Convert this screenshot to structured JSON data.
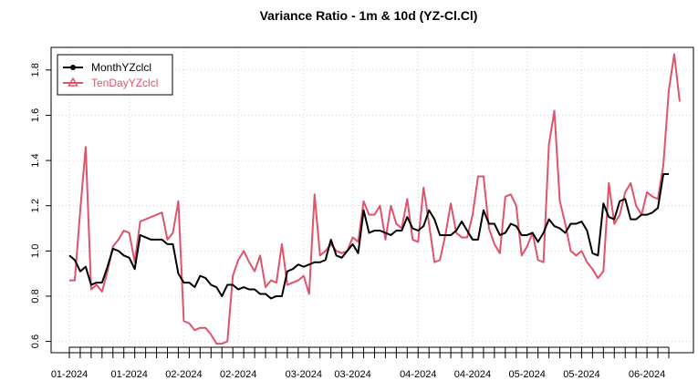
{
  "chart_data": {
    "type": "line",
    "title": "Variance Ratio - 1m & 10d (YZ-Cl.Cl)",
    "xlabel": "",
    "ylabel": "",
    "ylim": [
      0.55,
      1.9
    ],
    "yticks": [
      "0.6",
      "0.8",
      "1.0",
      "1.2",
      "1.4",
      "1.6",
      "1.8"
    ],
    "x_tick_labels": [
      "01-2024",
      "01-2024",
      "02-2024",
      "02-2024",
      "03-2024",
      "03-2024",
      "04-2024",
      "04-2024",
      "05-2024",
      "05-2024",
      "06-2024"
    ],
    "x_tick_label_index": [
      0,
      11,
      21,
      31,
      43,
      52,
      64,
      74,
      84,
      94,
      106
    ],
    "grid": true,
    "legend_position": "top-left",
    "series": [
      {
        "name": "MonthYZclcl",
        "color": "#000000",
        "marker": "circle",
        "values": [
          0.98,
          0.96,
          0.91,
          0.93,
          0.85,
          0.86,
          0.86,
          0.93,
          1.01,
          1.0,
          0.98,
          0.97,
          0.92,
          1.07,
          1.06,
          1.05,
          1.05,
          1.05,
          1.03,
          1.03,
          0.9,
          0.86,
          0.86,
          0.84,
          0.89,
          0.88,
          0.85,
          0.84,
          0.8,
          0.85,
          0.85,
          0.83,
          0.84,
          0.83,
          0.83,
          0.81,
          0.81,
          0.79,
          0.8,
          0.8,
          0.91,
          0.92,
          0.94,
          0.93,
          0.94,
          0.95,
          0.95,
          0.96,
          1.05,
          0.98,
          0.97,
          1.0,
          1.03,
          0.99,
          1.18,
          1.08,
          1.09,
          1.09,
          1.08,
          1.07,
          1.09,
          1.09,
          1.15,
          1.1,
          1.09,
          1.11,
          1.18,
          1.14,
          1.07,
          1.07,
          1.07,
          1.09,
          1.13,
          1.09,
          1.05,
          1.05,
          1.18,
          1.12,
          1.12,
          1.07,
          1.08,
          1.12,
          1.11,
          1.07,
          1.07,
          1.08,
          1.04,
          1.08,
          1.14,
          1.11,
          1.1,
          1.08,
          1.12,
          1.12,
          1.13,
          1.09,
          0.99,
          0.98,
          1.21,
          1.15,
          1.14,
          1.22,
          1.23,
          1.14,
          1.14,
          1.16,
          1.16,
          1.17,
          1.19,
          1.34,
          1.34
        ]
      },
      {
        "name": "TenDayYZclcl",
        "color": "#DF536B",
        "marker": "triangle",
        "values": [
          0.87,
          0.87,
          1.18,
          1.46,
          0.83,
          0.85,
          0.82,
          0.91,
          1.02,
          1.05,
          1.09,
          1.08,
          0.95,
          1.13,
          1.14,
          1.15,
          1.16,
          1.17,
          1.05,
          1.08,
          1.22,
          0.69,
          0.68,
          0.65,
          0.66,
          0.66,
          0.63,
          0.59,
          0.59,
          0.6,
          0.89,
          0.96,
          1.0,
          0.95,
          0.91,
          0.98,
          0.84,
          0.87,
          0.86,
          1.03,
          0.85,
          0.86,
          0.87,
          0.89,
          0.81,
          1.25,
          0.98,
          1.0,
          1.03,
          1.0,
          0.99,
          1.0,
          1.06,
          1.04,
          1.22,
          1.16,
          1.16,
          1.2,
          1.05,
          1.2,
          1.12,
          1.1,
          1.23,
          1.05,
          1.04,
          1.28,
          1.12,
          0.95,
          0.96,
          1.07,
          1.21,
          1.08,
          1.06,
          1.06,
          1.16,
          1.33,
          1.33,
          1.1,
          1.03,
          0.99,
          1.24,
          1.25,
          1.2,
          0.98,
          1.02,
          1.08,
          0.96,
          0.95,
          1.47,
          1.62,
          1.22,
          1.12,
          1.0,
          0.98,
          1.0,
          0.95,
          0.92,
          0.88,
          0.91,
          1.3,
          1.12,
          1.16,
          1.26,
          1.3,
          1.2,
          1.16,
          1.26,
          1.24,
          1.23,
          1.38,
          1.71,
          1.87,
          1.66
        ]
      }
    ]
  }
}
